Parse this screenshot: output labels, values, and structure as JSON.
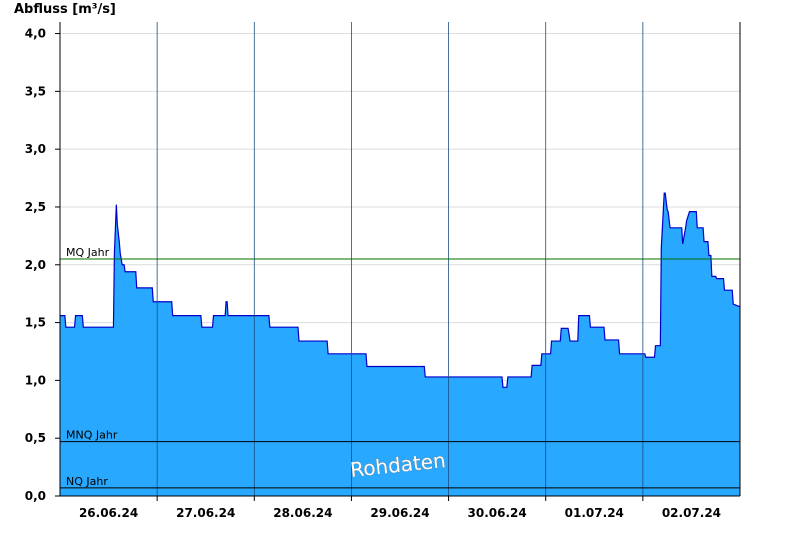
{
  "chart_data": {
    "type": "area",
    "ylabel": "Abfluss [m³/s]",
    "ylim": [
      0,
      4.1
    ],
    "xlim": [
      0,
      7
    ],
    "yticks": [
      0,
      0.5,
      1.0,
      1.5,
      2.0,
      2.5,
      3.0,
      3.5,
      4.0
    ],
    "yticklabels": [
      "0,0",
      "0,5",
      "1,0",
      "1,5",
      "2,0",
      "2,5",
      "3,0",
      "3,5",
      "4,0"
    ],
    "xticks": [
      0.5,
      1.5,
      2.5,
      3.5,
      4.5,
      5.5,
      6.5
    ],
    "xticklabels": [
      "26.06.24",
      "27.06.24",
      "28.06.24",
      "29.06.24",
      "30.06.24",
      "01.07.24",
      "02.07.24"
    ],
    "day_boundaries": [
      1,
      2,
      3,
      4,
      5,
      6
    ],
    "grid": true,
    "series": [
      {
        "x": [
          0,
          0.05,
          0.06,
          0.15,
          0.16,
          0.23,
          0.24,
          0.55,
          0.56,
          0.58,
          0.59,
          0.61,
          0.62,
          0.63,
          0.64,
          0.66,
          0.67,
          0.78,
          0.79,
          0.95,
          0.96,
          1.15,
          1.16,
          1.45,
          1.46,
          1.57,
          1.58,
          1.7,
          1.71,
          1.72,
          1.73,
          1.76,
          1.77,
          2.15,
          2.16,
          2.45,
          2.46,
          2.75,
          2.76,
          3.15,
          3.16,
          3.75,
          3.76,
          4.55,
          4.56,
          4.6,
          4.61,
          4.85,
          4.86,
          4.95,
          4.96,
          5.05,
          5.06,
          5.15,
          5.16,
          5.23,
          5.24,
          5.25,
          5.26,
          5.33,
          5.34,
          5.45,
          5.46,
          5.6,
          5.61,
          5.75,
          5.76,
          6.02,
          6.03,
          6.12,
          6.13,
          6.18,
          6.19,
          6.22,
          6.23,
          6.25,
          6.26,
          6.28,
          6.29,
          6.4,
          6.41,
          6.44,
          6.45,
          6.48,
          6.49,
          6.55,
          6.56,
          6.62,
          6.63,
          6.67,
          6.68,
          6.7,
          6.71,
          6.75,
          6.76,
          6.83,
          6.84,
          6.92,
          6.93,
          6.99,
          7.0
        ],
        "values": [
          1.56,
          1.56,
          1.46,
          1.46,
          1.56,
          1.56,
          1.46,
          1.46,
          2.1,
          2.52,
          2.35,
          2.2,
          2.1,
          2.05,
          2.0,
          2.0,
          1.94,
          1.94,
          1.8,
          1.8,
          1.68,
          1.68,
          1.56,
          1.56,
          1.46,
          1.46,
          1.56,
          1.56,
          1.68,
          1.68,
          1.56,
          1.56,
          1.56,
          1.56,
          1.46,
          1.46,
          1.34,
          1.34,
          1.23,
          1.23,
          1.12,
          1.12,
          1.03,
          1.03,
          0.94,
          0.94,
          1.03,
          1.03,
          1.13,
          1.13,
          1.23,
          1.23,
          1.34,
          1.34,
          1.45,
          1.45,
          1.4,
          1.34,
          1.34,
          1.34,
          1.56,
          1.56,
          1.46,
          1.46,
          1.35,
          1.35,
          1.23,
          1.23,
          1.2,
          1.2,
          1.3,
          1.3,
          2.15,
          2.62,
          2.62,
          2.48,
          2.46,
          2.32,
          2.32,
          2.32,
          2.18,
          2.32,
          2.38,
          2.46,
          2.46,
          2.46,
          2.32,
          2.32,
          2.2,
          2.2,
          2.08,
          2.08,
          1.9,
          1.9,
          1.88,
          1.88,
          1.78,
          1.78,
          1.66,
          1.64,
          1.64
        ]
      }
    ],
    "reference_lines": [
      {
        "label": "MQ Jahr",
        "value": 2.05,
        "color": "#007000"
      },
      {
        "label": "MNQ Jahr",
        "value": 0.47,
        "color": "#000000"
      },
      {
        "label": "NQ Jahr",
        "value": 0.07,
        "color": "#000000"
      }
    ],
    "watermark": "Rohdaten",
    "colors": {
      "fill": "#29A8FF",
      "stroke": "#0000C8",
      "grid": "#DCDCDC",
      "separator": "#1C4E80"
    }
  }
}
